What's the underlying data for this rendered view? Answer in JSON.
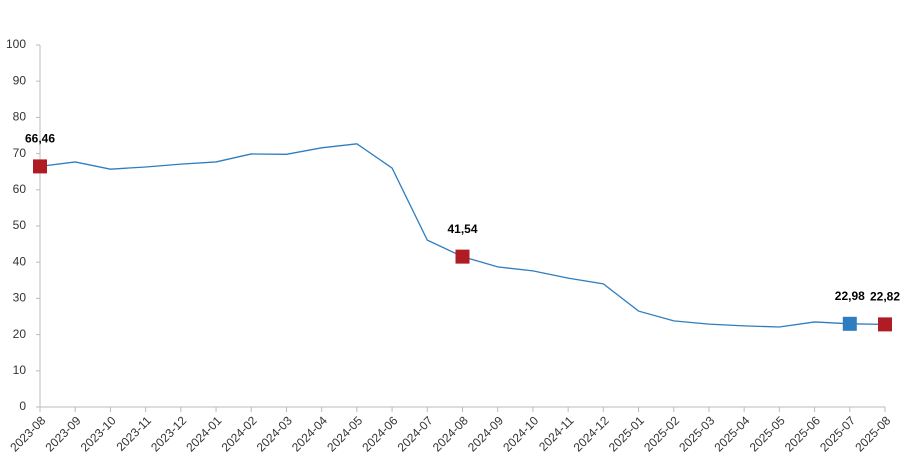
{
  "chart_data": {
    "type": "line",
    "x": [
      "2023-08",
      "2023-09",
      "2023-10",
      "2023-11",
      "2023-12",
      "2024-01",
      "2024-02",
      "2024-03",
      "2024-04",
      "2024-05",
      "2024-06",
      "2024-07",
      "2024-08",
      "2024-09",
      "2024-10",
      "2024-11",
      "2024-12",
      "2025-01",
      "2025-02",
      "2025-03",
      "2025-04",
      "2025-05",
      "2025-06",
      "2025-07",
      "2025-08"
    ],
    "series": [
      {
        "color": "#2e7dc0",
        "values": [
          66.46,
          67.7,
          65.7,
          66.3,
          67.1,
          67.7,
          69.9,
          69.8,
          71.6,
          72.7,
          66.0,
          46.1,
          41.54,
          38.7,
          37.6,
          35.6,
          34.0,
          26.5,
          23.8,
          22.9,
          22.4,
          22.1,
          23.5,
          22.98,
          22.82
        ],
        "value_labels": [
          "66,46",
          null,
          null,
          null,
          null,
          null,
          null,
          null,
          null,
          null,
          null,
          null,
          "41,54",
          null,
          null,
          null,
          null,
          null,
          null,
          null,
          null,
          null,
          null,
          "22,98",
          "22,82"
        ],
        "marker_colors": [
          "#b01c24",
          null,
          null,
          null,
          null,
          null,
          null,
          null,
          null,
          null,
          null,
          null,
          "#b01c24",
          null,
          null,
          null,
          null,
          null,
          null,
          null,
          null,
          null,
          null,
          "#2e7dc0",
          "#b01c24"
        ]
      }
    ],
    "ylim": [
      0,
      100
    ],
    "yticks": [
      0,
      10,
      20,
      30,
      40,
      50,
      60,
      70,
      80,
      90,
      100
    ],
    "grid": false
  }
}
